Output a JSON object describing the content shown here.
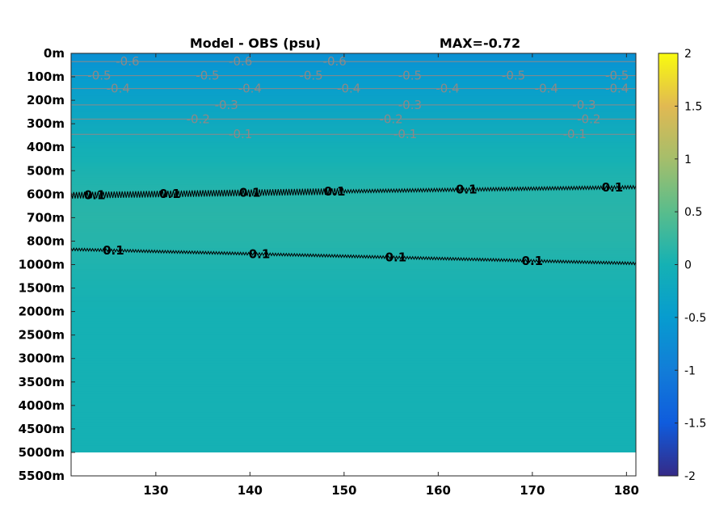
{
  "chart_data": {
    "type": "heatmap",
    "title_left": "Model - OBS (psu)",
    "title_right": "MAX=-0.72",
    "xlabel": "",
    "ylabel": "",
    "x_ticks": [
      130,
      140,
      150,
      160,
      170,
      180
    ],
    "xlim": [
      121,
      181
    ],
    "y_tick_labels": [
      "0m",
      "100m",
      "200m",
      "300m",
      "400m",
      "500m",
      "600m",
      "700m",
      "800m",
      "1000m",
      "1500m",
      "2000m",
      "2500m",
      "3000m",
      "3500m",
      "4000m",
      "4500m",
      "5000m",
      "5500m"
    ],
    "data_bottom_label": "5000m",
    "colorbar": {
      "colormap": "parula",
      "clim": [
        -2,
        2
      ],
      "ticks": [
        "2",
        "1.5",
        "1",
        "0.5",
        "0",
        "-0.5",
        "-1",
        "-1.5",
        "-2"
      ]
    },
    "background_bands": [
      {
        "depth_label": "0m",
        "value": -0.7
      },
      {
        "depth_label": "100m",
        "value": -0.5
      },
      {
        "depth_label": "200m",
        "value": -0.35
      },
      {
        "depth_label": "300m",
        "value": -0.2
      },
      {
        "depth_label": "400m",
        "value": -0.05
      },
      {
        "depth_label": "500m",
        "value": 0.05
      },
      {
        "depth_label": "600m",
        "value": 0.12
      },
      {
        "depth_label": "700m",
        "value": 0.15
      },
      {
        "depth_label": "800m",
        "value": 0.12
      },
      {
        "depth_label": "1000m",
        "value": 0.07
      },
      {
        "depth_label": "1500m",
        "value": 0.03
      },
      {
        "depth_label": "2000m",
        "value": 0.0
      },
      {
        "depth_label": "5000m",
        "value": 0.0
      }
    ],
    "contours": [
      {
        "level": -0.6,
        "color": "grey",
        "depth_row": 0.35,
        "labels": [
          "-0.6",
          "-0.6",
          "-0.6"
        ],
        "label_x": [
          127,
          139,
          149
        ]
      },
      {
        "level": -0.5,
        "color": "grey",
        "depth_row": 0.95,
        "labels": [
          "-0.5",
          "-0.5",
          "-0.5",
          "-0.5",
          "-0.5",
          "-0.5"
        ],
        "label_x": [
          124,
          135.5,
          146.5,
          157,
          168,
          179
        ]
      },
      {
        "level": -0.4,
        "color": "grey",
        "depth_row": 1.5,
        "labels": [
          "-0.4",
          "-0.4",
          "-0.4",
          "-0.4",
          "-0.4",
          "-0.4"
        ],
        "label_x": [
          126,
          140,
          150.5,
          161,
          171.5,
          179
        ]
      },
      {
        "level": -0.3,
        "color": "grey",
        "depth_row": 2.2,
        "labels": [
          "-0.3",
          "-0.3",
          "-0.3"
        ],
        "label_x": [
          137.5,
          157,
          175.5
        ]
      },
      {
        "level": -0.2,
        "color": "grey",
        "depth_row": 2.8,
        "labels": [
          "-0.2",
          "-0.2",
          "-0.2"
        ],
        "label_x": [
          134.5,
          155,
          176
        ]
      },
      {
        "level": -0.1,
        "color": "grey",
        "depth_row": 3.45,
        "labels": [
          "-0.1",
          "-0.1",
          "-0.1"
        ],
        "label_x": [
          139,
          156.5,
          174.5
        ]
      },
      {
        "level": 0.1,
        "color": "black",
        "depth_start": 6.05,
        "depth_end": 5.7,
        "labels": [
          "0.1",
          "0.1",
          "0.1",
          "0.1",
          "0.1",
          "0.1"
        ],
        "label_x": [
          123.5,
          131.5,
          140,
          149,
          163,
          178.5
        ]
      },
      {
        "level": 0.1,
        "color": "black",
        "depth_start": 8.35,
        "depth_end": 8.95,
        "labels": [
          "0.1",
          "0.1",
          "0.1",
          "0.1"
        ],
        "label_x": [
          125.5,
          141,
          155.5,
          170
        ]
      }
    ]
  }
}
